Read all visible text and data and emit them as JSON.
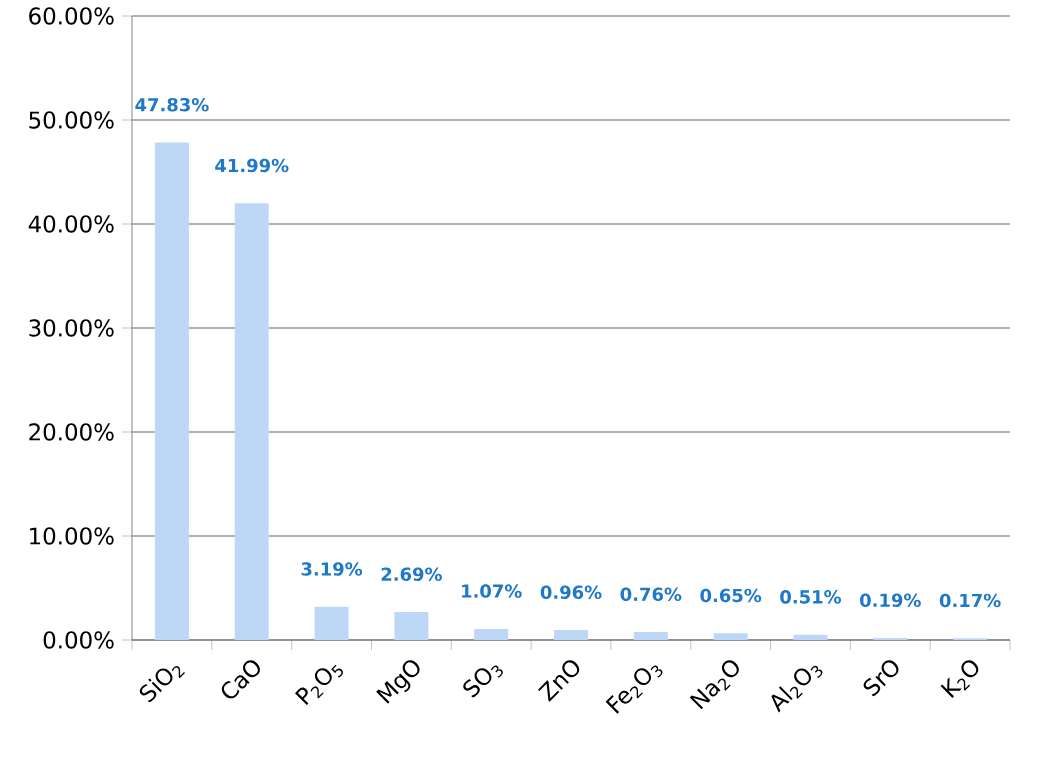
{
  "chart_data": {
    "type": "bar",
    "categories": [
      "SiO$_{2}$",
      "CaO",
      "P$_{2}$O$_{5}$",
      "MgO",
      "SO$_{3}$",
      "ZnO",
      "Fe$_{2}$O$_{3}$",
      "Na$_{2}$O",
      "Al$_{2}$O$_{3}$",
      "SrO",
      "K$_{2}$O"
    ],
    "values": [
      47.83,
      41.99,
      3.19,
      2.69,
      1.07,
      0.96,
      0.76,
      0.65,
      0.51,
      0.19,
      0.17
    ],
    "value_labels": [
      "47.83%",
      "41.99%",
      "3.19%",
      "2.69%",
      "1.07%",
      "0.96%",
      "0.76%",
      "0.65%",
      "0.51%",
      "0.19%",
      "0.17%"
    ],
    "color": "#bdd7f7",
    "ylim": [
      0,
      60
    ],
    "yticks": [
      {
        "value": 0,
        "label": "0.00%"
      },
      {
        "value": 10,
        "label": "10.00%"
      },
      {
        "value": 20,
        "label": "20.00%"
      },
      {
        "value": 30,
        "label": "30.00%"
      },
      {
        "value": 40,
        "label": "40.00%"
      },
      {
        "value": 50,
        "label": "50.00%"
      },
      {
        "value": 60,
        "label": "60.00%"
      }
    ],
    "grid": "y"
  }
}
